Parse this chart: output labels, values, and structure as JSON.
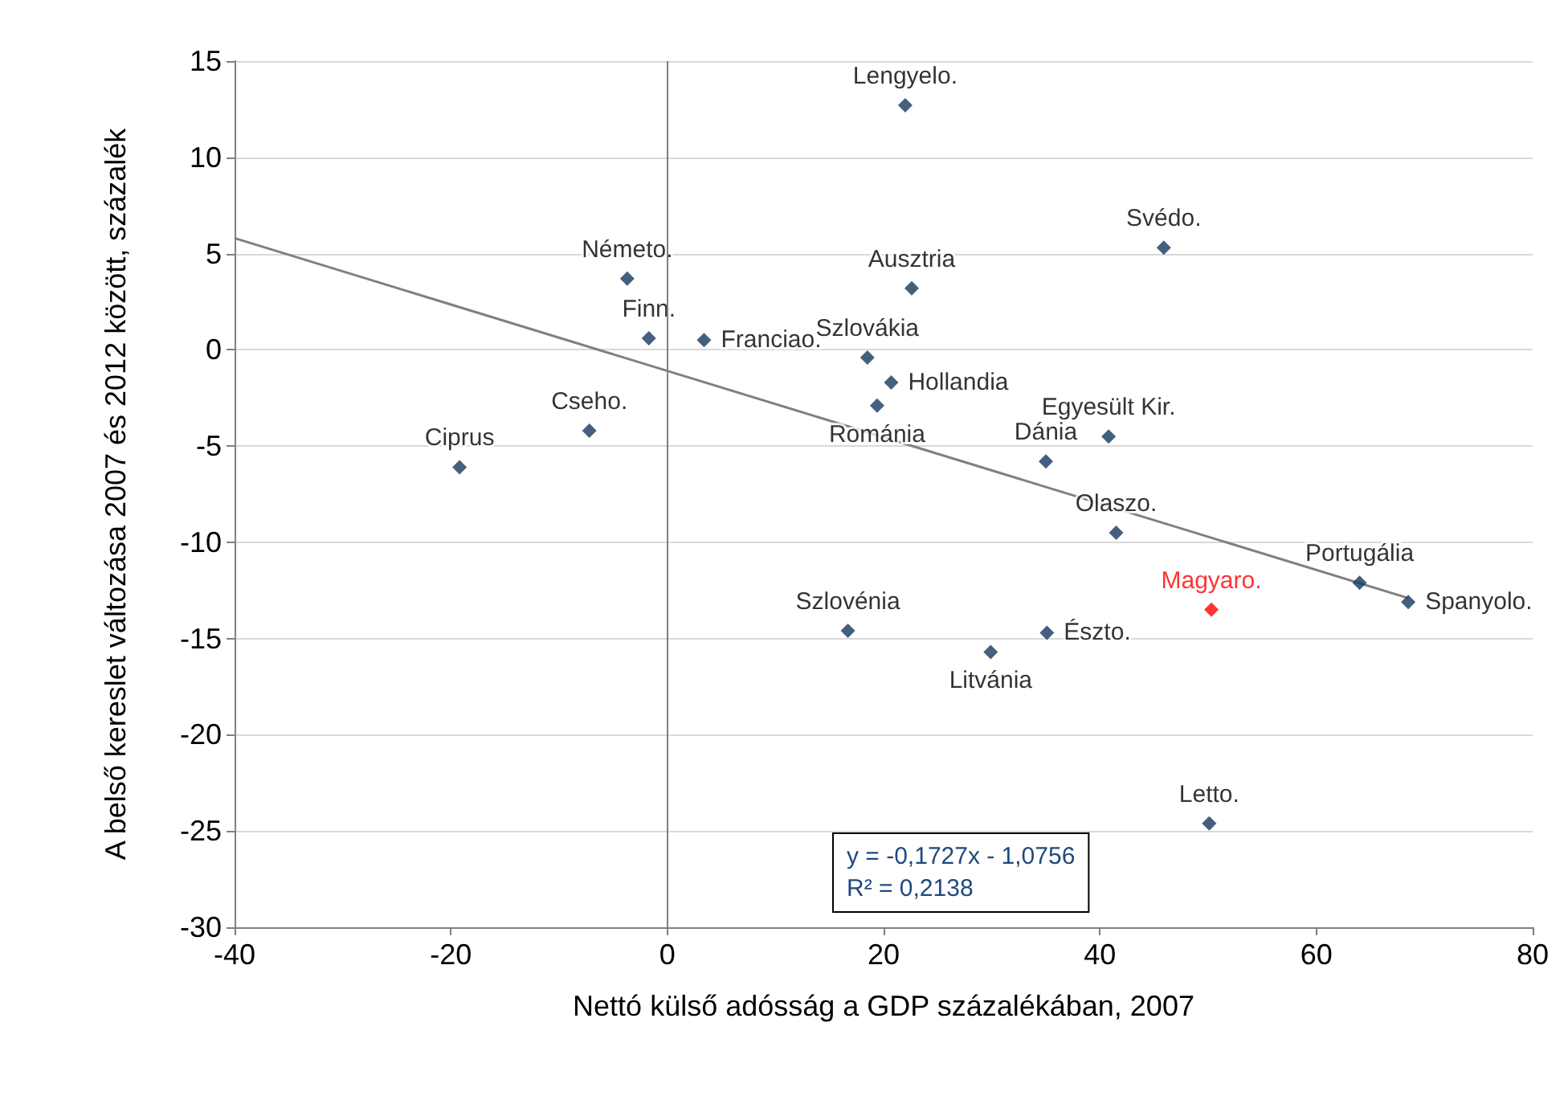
{
  "chart_data": {
    "type": "scatter",
    "xlabel": "Nettó külső adósság a GDP százalékában, 2007",
    "ylabel": "A belső kereslet változása 2007 és 2012 között, százalék",
    "xlim": [
      -40,
      80
    ],
    "xticks": [
      -40,
      -20,
      0,
      20,
      40,
      60,
      80
    ],
    "ylim": [
      -30,
      15
    ],
    "yticks": [
      -30,
      -25,
      -20,
      -15,
      -10,
      -5,
      0,
      5,
      10,
      15
    ],
    "grid": "y",
    "marker": "diamond",
    "ref_lines": [
      {
        "axis": "x",
        "value": 0,
        "color": "#808080"
      }
    ],
    "annotations": [
      "y = -0,1727x - 1,0756\nR² = 0,2138"
    ],
    "series": [
      {
        "color": "#17375e",
        "x": [
          22.0,
          45.9,
          -3.7,
          -1.7,
          3.4,
          22.6,
          18.5,
          20.7,
          19.4,
          -7.2,
          -19.2,
          40.8,
          35.0,
          41.5,
          64.0,
          68.5,
          16.7,
          29.9,
          35.1,
          50.1
        ],
        "values": [
          12.7,
          5.3,
          3.7,
          0.6,
          0.5,
          3.2,
          -0.4,
          -1.7,
          -2.9,
          -4.2,
          -6.1,
          -4.5,
          -5.8,
          -9.5,
          -12.1,
          -13.1,
          -14.6,
          -15.7,
          -14.7,
          -24.6
        ],
        "value_labels": [
          "Lengyelo.",
          "Svédo.",
          "Németo.",
          "Finn.",
          "Franciao.",
          "Ausztria",
          "Szlovákia",
          "Hollandia",
          "Románia",
          "Cseho.",
          "Ciprus",
          "Egyesült Kir.",
          "Dánia",
          "Olaszo.",
          "Portugália",
          "Spanyolo.",
          "Szlovénia",
          "Litvánia",
          "Észto.",
          "Letto."
        ]
      },
      {
        "color": "#ff0000",
        "x": [
          50.3
        ],
        "values": [
          -13.5
        ],
        "value_labels": [
          "Magyaro."
        ]
      },
      {
        "type": "line",
        "color": "#808080",
        "x": [
          -40,
          68.5
        ],
        "values": [
          5.8,
          -12.9
        ],
        "marker": "none"
      }
    ]
  }
}
